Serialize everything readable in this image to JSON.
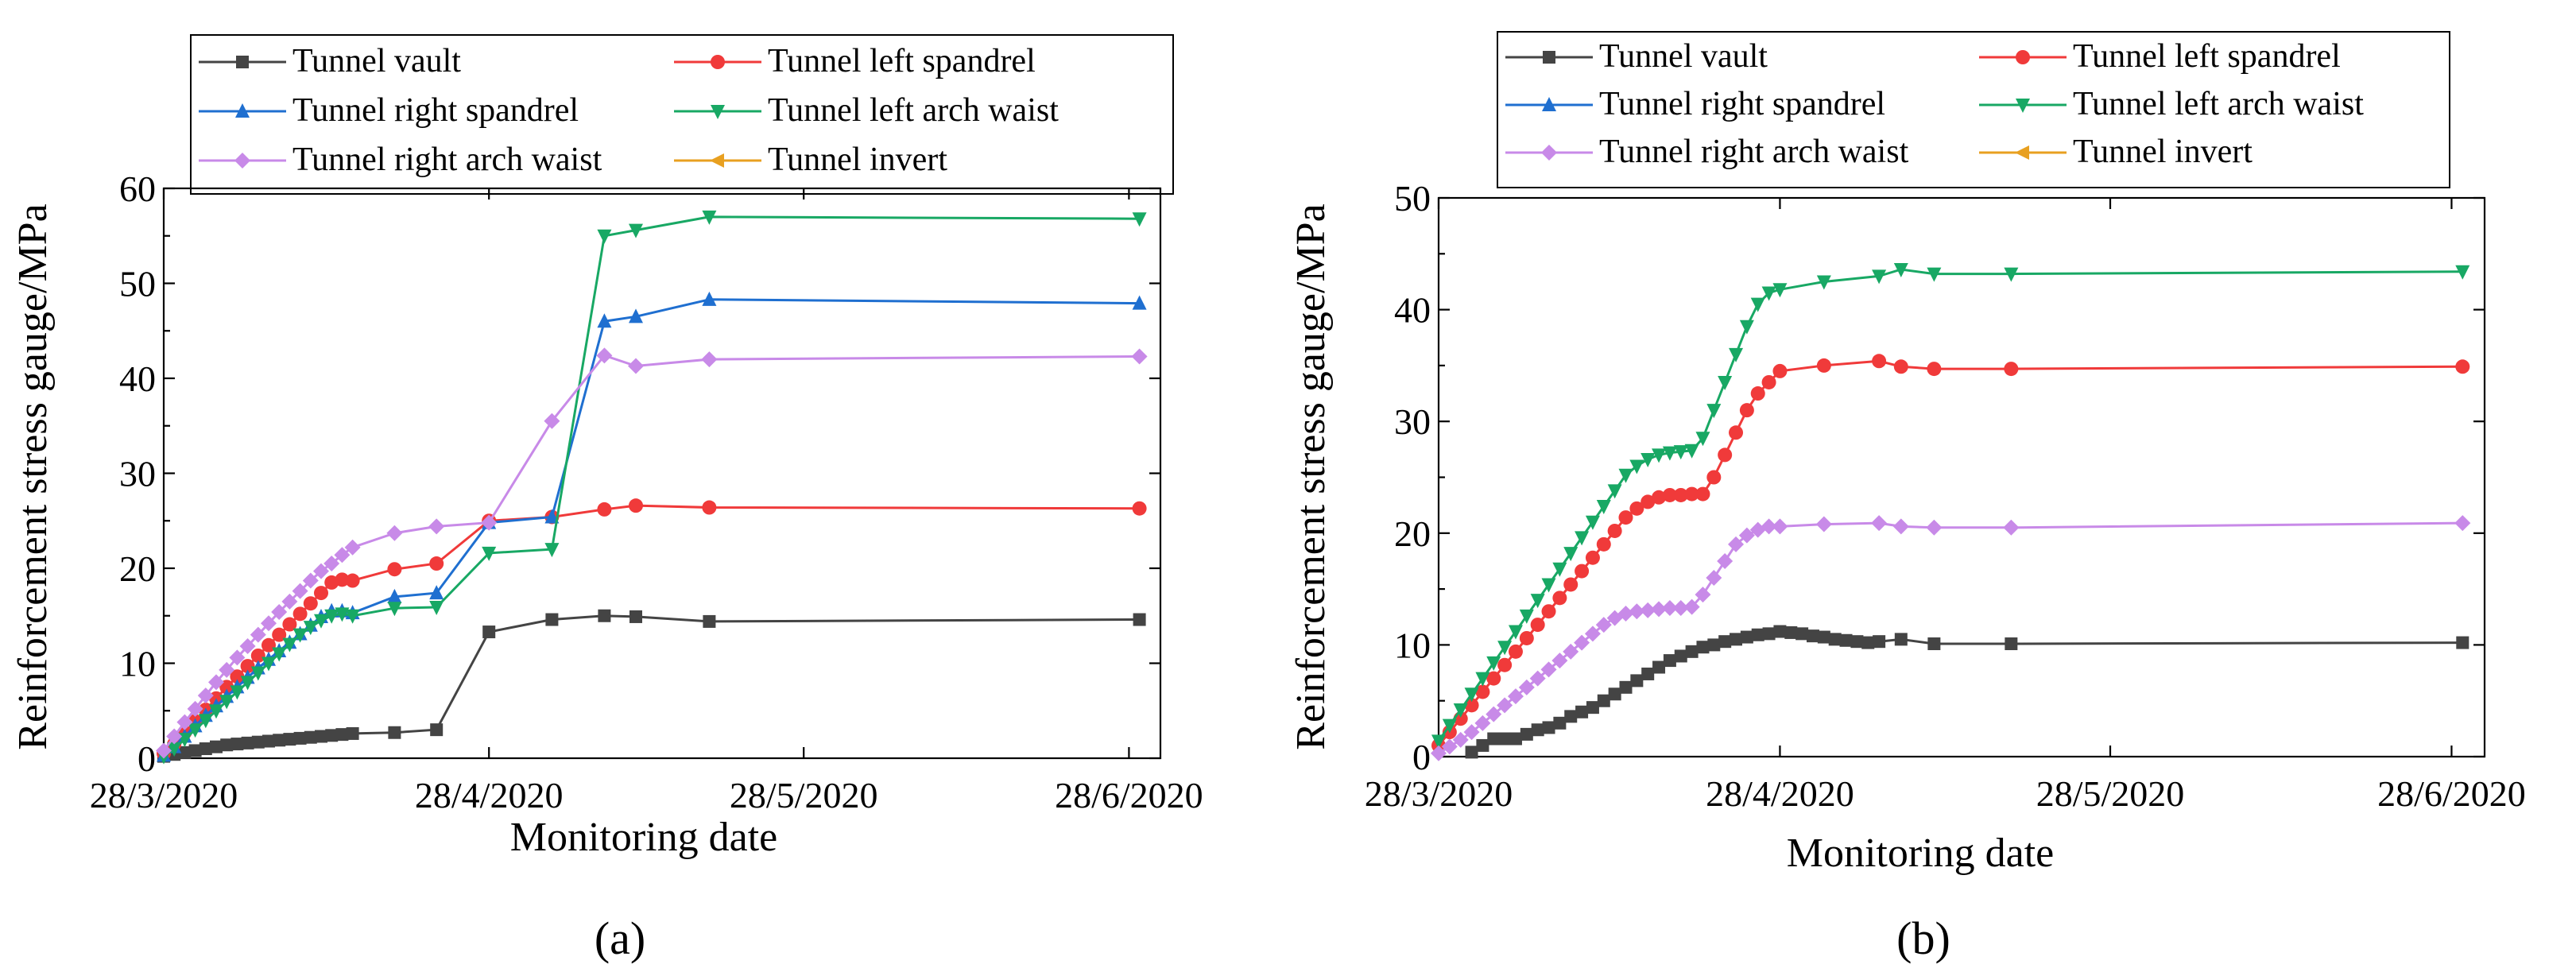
{
  "colors": {
    "vault": "#444444",
    "left_spandrel": "#f03a3a",
    "right_spandrel": "#1f6fd0",
    "left_arch_waist": "#18a864",
    "right_arch_waist": "#c88ae8",
    "invert": "#e8a020"
  },
  "chart_data": [
    {
      "type": "line",
      "panel_label": "(a)",
      "xlabel": "Monitoring date",
      "ylabel": "Reinforcement stress gauge/MPa",
      "x_unit": "days since 28/3/2020",
      "xlim": [
        0,
        95
      ],
      "ylim": [
        0,
        60
      ],
      "xticks": [
        {
          "value": 0,
          "label": "28/3/2020"
        },
        {
          "value": 31,
          "label": "28/4/2020"
        },
        {
          "value": 61,
          "label": "28/5/2020"
        },
        {
          "value": 92,
          "label": "28/6/2020"
        }
      ],
      "yticks": [
        0,
        10,
        20,
        30,
        40,
        50,
        60
      ],
      "legend_position": "top",
      "series": [
        {
          "name": "Tunnel vault",
          "color": "#444444",
          "marker": "square",
          "x": [
            0,
            1,
            2,
            3,
            4,
            5,
            6,
            7,
            8,
            9,
            10,
            11,
            12,
            13,
            14,
            15,
            16,
            17,
            18,
            22,
            26,
            31,
            37,
            42,
            45,
            52,
            93
          ],
          "y": [
            0.2,
            0.4,
            0.6,
            0.8,
            1.0,
            1.2,
            1.4,
            1.5,
            1.6,
            1.7,
            1.8,
            1.9,
            2.0,
            2.1,
            2.2,
            2.3,
            2.4,
            2.5,
            2.6,
            2.7,
            3.0,
            13.3,
            14.6,
            15.0,
            14.9,
            14.4,
            14.6
          ]
        },
        {
          "name": "Tunnel left spandrel",
          "color": "#f03a3a",
          "marker": "circle",
          "x": [
            0,
            1,
            2,
            3,
            4,
            5,
            6,
            7,
            8,
            9,
            10,
            11,
            12,
            13,
            14,
            15,
            16,
            17,
            18,
            22,
            26,
            31,
            37,
            42,
            45,
            52,
            93
          ],
          "y": [
            0.5,
            1.5,
            2.7,
            3.9,
            5.1,
            6.3,
            7.5,
            8.6,
            9.7,
            10.8,
            11.9,
            13.0,
            14.1,
            15.2,
            16.3,
            17.4,
            18.5,
            18.8,
            18.7,
            19.9,
            20.5,
            25.0,
            25.4,
            26.2,
            26.6,
            26.4,
            26.3
          ]
        },
        {
          "name": "Tunnel right spandrel",
          "color": "#1f6fd0",
          "marker": "triangle-up",
          "x": [
            0,
            1,
            2,
            3,
            4,
            5,
            6,
            7,
            8,
            9,
            10,
            11,
            12,
            13,
            14,
            15,
            16,
            17,
            18,
            22,
            26,
            31,
            37,
            42,
            45,
            52,
            93
          ],
          "y": [
            0.3,
            1.2,
            2.3,
            3.4,
            4.5,
            5.5,
            6.5,
            7.5,
            8.5,
            9.5,
            10.4,
            11.3,
            12.2,
            13.1,
            14.0,
            14.9,
            15.5,
            15.5,
            15.3,
            17.0,
            17.4,
            24.8,
            25.4,
            46.0,
            46.5,
            48.3,
            47.9
          ]
        },
        {
          "name": "Tunnel left arch waist",
          "color": "#18a864",
          "marker": "triangle-down",
          "x": [
            0,
            1,
            2,
            3,
            4,
            5,
            6,
            7,
            8,
            9,
            10,
            11,
            12,
            13,
            14,
            15,
            16,
            17,
            18,
            22,
            26,
            31,
            37,
            42,
            45,
            52,
            93
          ],
          "y": [
            0.2,
            1.0,
            2.0,
            3.0,
            4.0,
            5.0,
            6.0,
            7.0,
            8.0,
            9.0,
            10.0,
            11.0,
            12.0,
            13.0,
            13.8,
            14.5,
            15.0,
            15.2,
            15.0,
            15.8,
            15.9,
            21.6,
            22.0,
            55.0,
            55.6,
            57.0,
            56.8
          ]
        },
        {
          "name": "Tunnel right arch waist",
          "color": "#c88ae8",
          "marker": "diamond",
          "x": [
            0,
            1,
            2,
            3,
            4,
            5,
            6,
            7,
            8,
            9,
            10,
            11,
            12,
            13,
            14,
            15,
            16,
            17,
            18,
            22,
            26,
            31,
            37,
            42,
            45,
            52,
            93
          ],
          "y": [
            0.8,
            2.3,
            3.8,
            5.2,
            6.6,
            8.0,
            9.3,
            10.6,
            11.8,
            13.0,
            14.2,
            15.4,
            16.5,
            17.6,
            18.7,
            19.7,
            20.5,
            21.4,
            22.2,
            23.7,
            24.4,
            24.8,
            35.5,
            42.4,
            41.3,
            42.0,
            42.3
          ]
        },
        {
          "name": "Tunnel invert",
          "color": "#e8a020",
          "marker": "triangle-left",
          "x": [],
          "y": []
        }
      ]
    },
    {
      "type": "line",
      "panel_label": "(b)",
      "xlabel": "Monitoring date",
      "ylabel": "Reinforcement stress gauge/MPa",
      "x_unit": "days since 28/3/2020",
      "xlim": [
        0,
        95
      ],
      "ylim": [
        0,
        50
      ],
      "xticks": [
        {
          "value": 0,
          "label": "28/3/2020"
        },
        {
          "value": 31,
          "label": "28/4/2020"
        },
        {
          "value": 61,
          "label": "28/5/2020"
        },
        {
          "value": 92,
          "label": "28/6/2020"
        }
      ],
      "yticks": [
        0,
        10,
        20,
        30,
        40,
        50
      ],
      "legend_position": "top",
      "series": [
        {
          "name": "Tunnel vault",
          "color": "#444444",
          "marker": "square",
          "x": [
            3,
            4,
            5,
            6,
            7,
            8,
            9,
            10,
            11,
            12,
            13,
            14,
            15,
            16,
            17,
            18,
            19,
            20,
            21,
            22,
            23,
            24,
            25,
            26,
            27,
            28,
            29,
            30,
            31,
            32,
            33,
            34,
            35,
            36,
            37,
            38,
            39,
            40,
            42,
            45,
            52,
            93
          ],
          "y": [
            0.4,
            1.0,
            1.6,
            1.6,
            1.6,
            2.0,
            2.4,
            2.6,
            3.0,
            3.6,
            4.0,
            4.4,
            5.0,
            5.6,
            6.2,
            6.8,
            7.4,
            8.0,
            8.6,
            9.0,
            9.4,
            9.8,
            10.0,
            10.3,
            10.5,
            10.7,
            10.9,
            11.0,
            11.2,
            11.1,
            11.0,
            10.8,
            10.7,
            10.5,
            10.4,
            10.3,
            10.2,
            10.3,
            10.5,
            10.1,
            10.1,
            10.2
          ]
        },
        {
          "name": "Tunnel left spandrel",
          "color": "#f03a3a",
          "marker": "circle",
          "x": [
            0,
            1,
            2,
            3,
            4,
            5,
            6,
            7,
            8,
            9,
            10,
            11,
            12,
            13,
            14,
            15,
            16,
            17,
            18,
            19,
            20,
            21,
            22,
            23,
            24,
            25,
            26,
            27,
            28,
            29,
            30,
            31,
            35,
            40,
            42,
            45,
            52,
            93
          ],
          "y": [
            1.0,
            2.2,
            3.4,
            4.6,
            5.8,
            7.0,
            8.2,
            9.4,
            10.6,
            11.8,
            13.0,
            14.2,
            15.4,
            16.6,
            17.8,
            19.0,
            20.2,
            21.4,
            22.2,
            22.8,
            23.2,
            23.4,
            23.4,
            23.5,
            23.5,
            25.0,
            27.0,
            29.0,
            31.0,
            32.5,
            33.5,
            34.5,
            35.0,
            35.4,
            34.9,
            34.7,
            34.7,
            34.9
          ]
        },
        {
          "name": "Tunnel right spandrel",
          "color": "#1f6fd0",
          "marker": "triangle-up",
          "x": [],
          "y": []
        },
        {
          "name": "Tunnel left arch waist",
          "color": "#18a864",
          "marker": "triangle-down",
          "x": [
            0,
            1,
            2,
            3,
            4,
            5,
            6,
            7,
            8,
            9,
            10,
            11,
            12,
            13,
            14,
            15,
            16,
            17,
            18,
            19,
            20,
            21,
            22,
            23,
            24,
            25,
            26,
            27,
            28,
            29,
            30,
            31,
            35,
            40,
            42,
            45,
            52,
            93
          ],
          "y": [
            1.4,
            2.8,
            4.2,
            5.6,
            7.0,
            8.4,
            9.8,
            11.2,
            12.6,
            14.0,
            15.4,
            16.8,
            18.2,
            19.6,
            21.0,
            22.4,
            23.8,
            25.2,
            26.0,
            26.6,
            27.0,
            27.2,
            27.3,
            27.4,
            28.5,
            31.0,
            33.5,
            36.0,
            38.5,
            40.5,
            41.5,
            41.8,
            42.5,
            43.0,
            43.6,
            43.2,
            43.2,
            43.4
          ]
        },
        {
          "name": "Tunnel right arch waist",
          "color": "#c88ae8",
          "marker": "diamond",
          "x": [
            0,
            1,
            2,
            3,
            4,
            5,
            6,
            7,
            8,
            9,
            10,
            11,
            12,
            13,
            14,
            15,
            16,
            17,
            18,
            19,
            20,
            21,
            22,
            23,
            24,
            25,
            26,
            27,
            28,
            29,
            30,
            31,
            35,
            40,
            42,
            45,
            52,
            93
          ],
          "y": [
            0.3,
            0.9,
            1.5,
            2.2,
            3.0,
            3.8,
            4.6,
            5.4,
            6.2,
            7.0,
            7.8,
            8.6,
            9.4,
            10.2,
            11.0,
            11.8,
            12.4,
            12.8,
            13.0,
            13.1,
            13.2,
            13.3,
            13.3,
            13.4,
            14.5,
            16.0,
            17.5,
            19.0,
            19.8,
            20.3,
            20.6,
            20.6,
            20.8,
            20.9,
            20.6,
            20.5,
            20.5,
            20.9
          ]
        },
        {
          "name": "Tunnel invert",
          "color": "#e8a020",
          "marker": "triangle-left",
          "x": [],
          "y": []
        }
      ]
    }
  ]
}
